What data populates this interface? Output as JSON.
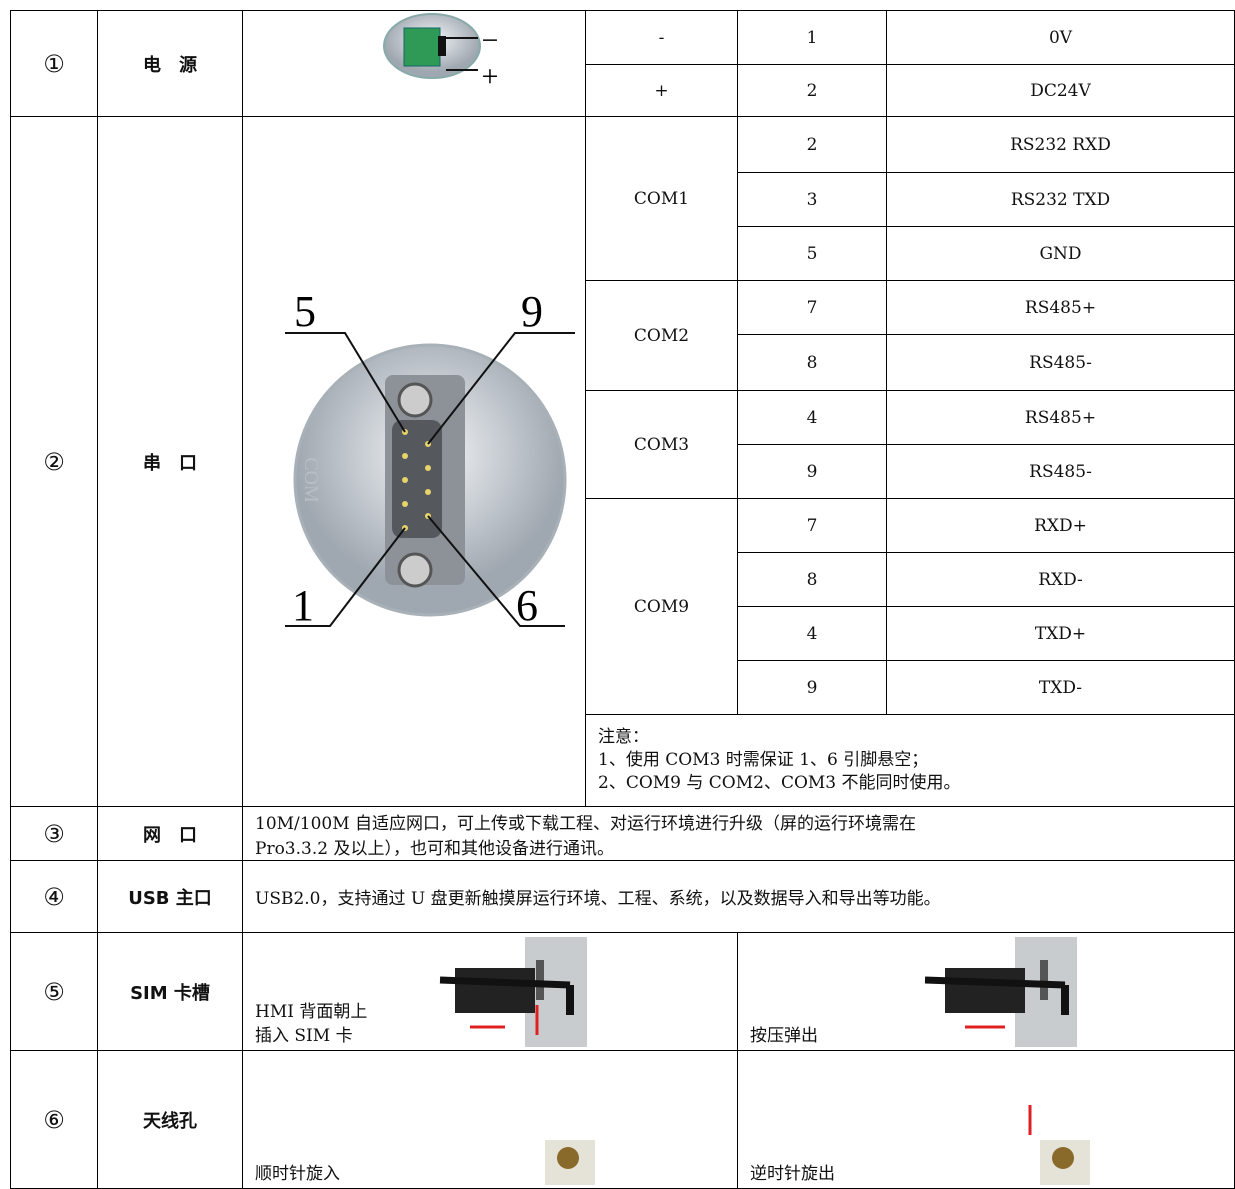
{
  "rows": [
    {
      "num": "①",
      "name": "电　源",
      "image_labels": [
        "−",
        "+"
      ],
      "pins": [
        {
          "signal": "-",
          "pin": "1",
          "desc": "0V"
        },
        {
          "signal": "+",
          "pin": "2",
          "desc": "DC24V"
        }
      ]
    },
    {
      "num": "②",
      "name": "串　口",
      "image_labels": [
        "5",
        "9",
        "1",
        "6",
        "COM"
      ],
      "groups": [
        {
          "port": "COM1",
          "pins": [
            {
              "pin": "2",
              "desc": "RS232 RXD"
            },
            {
              "pin": "3",
              "desc": "RS232 TXD"
            },
            {
              "pin": "5",
              "desc": "GND"
            }
          ]
        },
        {
          "port": "COM2",
          "pins": [
            {
              "pin": "7",
              "desc": "RS485+"
            },
            {
              "pin": "8",
              "desc": "RS485-"
            }
          ]
        },
        {
          "port": "COM3",
          "pins": [
            {
              "pin": "4",
              "desc": "RS485+"
            },
            {
              "pin": "9",
              "desc": "RS485-"
            }
          ]
        },
        {
          "port": "COM9",
          "pins": [
            {
              "pin": "7",
              "desc": "RXD+"
            },
            {
              "pin": "8",
              "desc": "RXD-"
            },
            {
              "pin": "4",
              "desc": "TXD+"
            },
            {
              "pin": "9",
              "desc": "TXD-"
            }
          ]
        }
      ],
      "note": [
        "注意：",
        "1、使用 COM3 时需保证 1、6 引脚悬空；",
        "2、COM9 与 COM2、COM3 不能同时使用。"
      ]
    },
    {
      "num": "③",
      "name": "网　口",
      "desc": [
        "10M/100M 自适应网口，可上传或下载工程、对运行环境进行升级（屏的运行环境需在",
        "Pro3.3.2 及以上），也可和其他设备进行通讯。"
      ]
    },
    {
      "num": "④",
      "name": "USB 主口",
      "desc": [
        "USB2.0，支持通过 U 盘更新触摸屏运行环境、工程、系统，以及数据导入和导出等功能。"
      ]
    },
    {
      "num": "⑤",
      "name": "SIM 卡槽",
      "left": [
        "HMI 背面朝上",
        "插入 SIM 卡"
      ],
      "right": [
        "按压弹出"
      ]
    },
    {
      "num": "⑥",
      "name": "天线孔",
      "left": [
        "顺时针旋入"
      ],
      "right": [
        "逆时针旋出"
      ]
    }
  ]
}
